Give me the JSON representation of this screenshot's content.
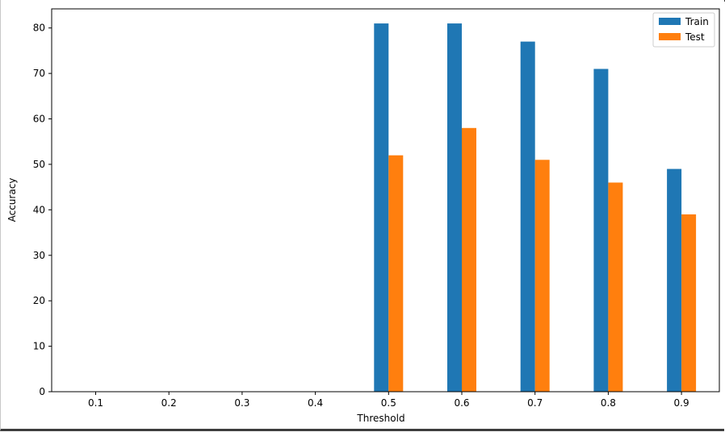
{
  "chart_data": {
    "type": "bar",
    "categories": [
      "0.1",
      "0.2",
      "0.3",
      "0.4",
      "0.5",
      "0.6",
      "0.7",
      "0.8",
      "0.9"
    ],
    "series": [
      {
        "name": "Train",
        "values": [
          0,
          0,
          0,
          0,
          81,
          81,
          77,
          71,
          49
        ],
        "color": "#1f77b4"
      },
      {
        "name": "Test",
        "values": [
          0,
          0,
          0,
          0,
          52,
          58,
          51,
          46,
          39
        ],
        "color": "#ff7f0e"
      }
    ],
    "title": "",
    "xlabel": "Threshold",
    "ylabel": "Accuracy",
    "ylim": [
      0,
      84.2
    ],
    "yticks": [
      0,
      10,
      20,
      30,
      40,
      50,
      60,
      70,
      80
    ],
    "grid": false,
    "legend_position": "top-right"
  }
}
